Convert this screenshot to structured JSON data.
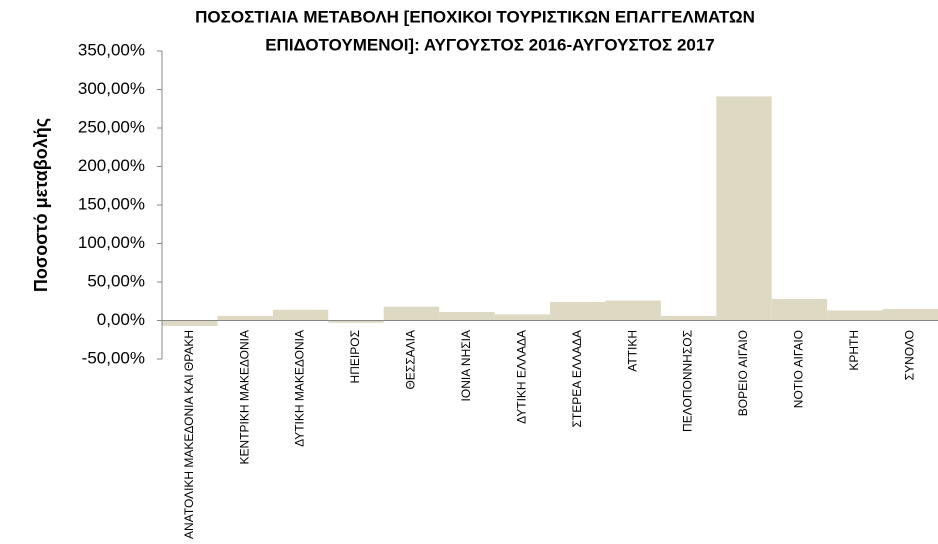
{
  "chart_data": {
    "type": "bar",
    "title": [
      "ΠΟΣΟΣΤΙΑΙΑ ΜΕΤΑΒΟΛΗ [ΕΠΟΧΙΚΟΙ ΤΟΥΡΙΣΤΙΚΩΝ ΕΠΑΓΓΕΛΜΑΤΩΝ",
      "ΕΠΙΔΟΤΟΥΜΕΝΟΙ]: ΑΥΓΟΥΣΤΟΣ 2016-ΑΥΓΟΥΣΤΟΣ 2017"
    ],
    "ylabel": "Ποσοστό μεταβολής",
    "categories": [
      "ΑΝΑΤΟΛΙΚΗ ΜΑΚΕΔΟΝΙΑ ΚΑΙ ΘΡΑΚΗ",
      "ΚΕΝΤΡΙΚΗ ΜΑΚΕΔΟΝΙΑ",
      "ΔΥΤΙΚΗ ΜΑΚΕΔΟΝΙΑ",
      "ΗΠΕΙΡΟΣ",
      "ΘΕΣΣΑΛΙΑ",
      "ΙΟΝΙΑ ΝΗΣΙΑ",
      "ΔΥΤΙΚΗ ΕΛΛΑΔΑ",
      "ΣΤΕΡΕΑ ΕΛΛΑΔΑ",
      "ΑΤΤΙΚΗ",
      "ΠΕΛΟΠΟΝΝΗΣΟΣ",
      "ΒΟΡΕΙΟ ΑΙΓΑΙΟ",
      "ΝΟΤΙΟ ΑΙΓΑΙΟ",
      "ΚΡΗΤΗ",
      "ΣΥΝΟΛΟ"
    ],
    "values": [
      -7,
      6,
      14,
      -3,
      18,
      11,
      8,
      24,
      26,
      6,
      291,
      28,
      13,
      15
    ],
    "color": "#ddd9c3",
    "ylim": [
      -50,
      350
    ],
    "yticks": [
      {
        "value": -50,
        "label": "-50,00%"
      },
      {
        "value": 0,
        "label": "0,00%"
      },
      {
        "value": 50,
        "label": "50,00%"
      },
      {
        "value": 100,
        "label": "100,00%"
      },
      {
        "value": 150,
        "label": "150,00%"
      },
      {
        "value": 200,
        "label": "200,00%"
      },
      {
        "value": 250,
        "label": "250,00%"
      },
      {
        "value": 300,
        "label": "300,00%"
      },
      {
        "value": 350,
        "label": "350,00%"
      }
    ],
    "grid": false
  }
}
